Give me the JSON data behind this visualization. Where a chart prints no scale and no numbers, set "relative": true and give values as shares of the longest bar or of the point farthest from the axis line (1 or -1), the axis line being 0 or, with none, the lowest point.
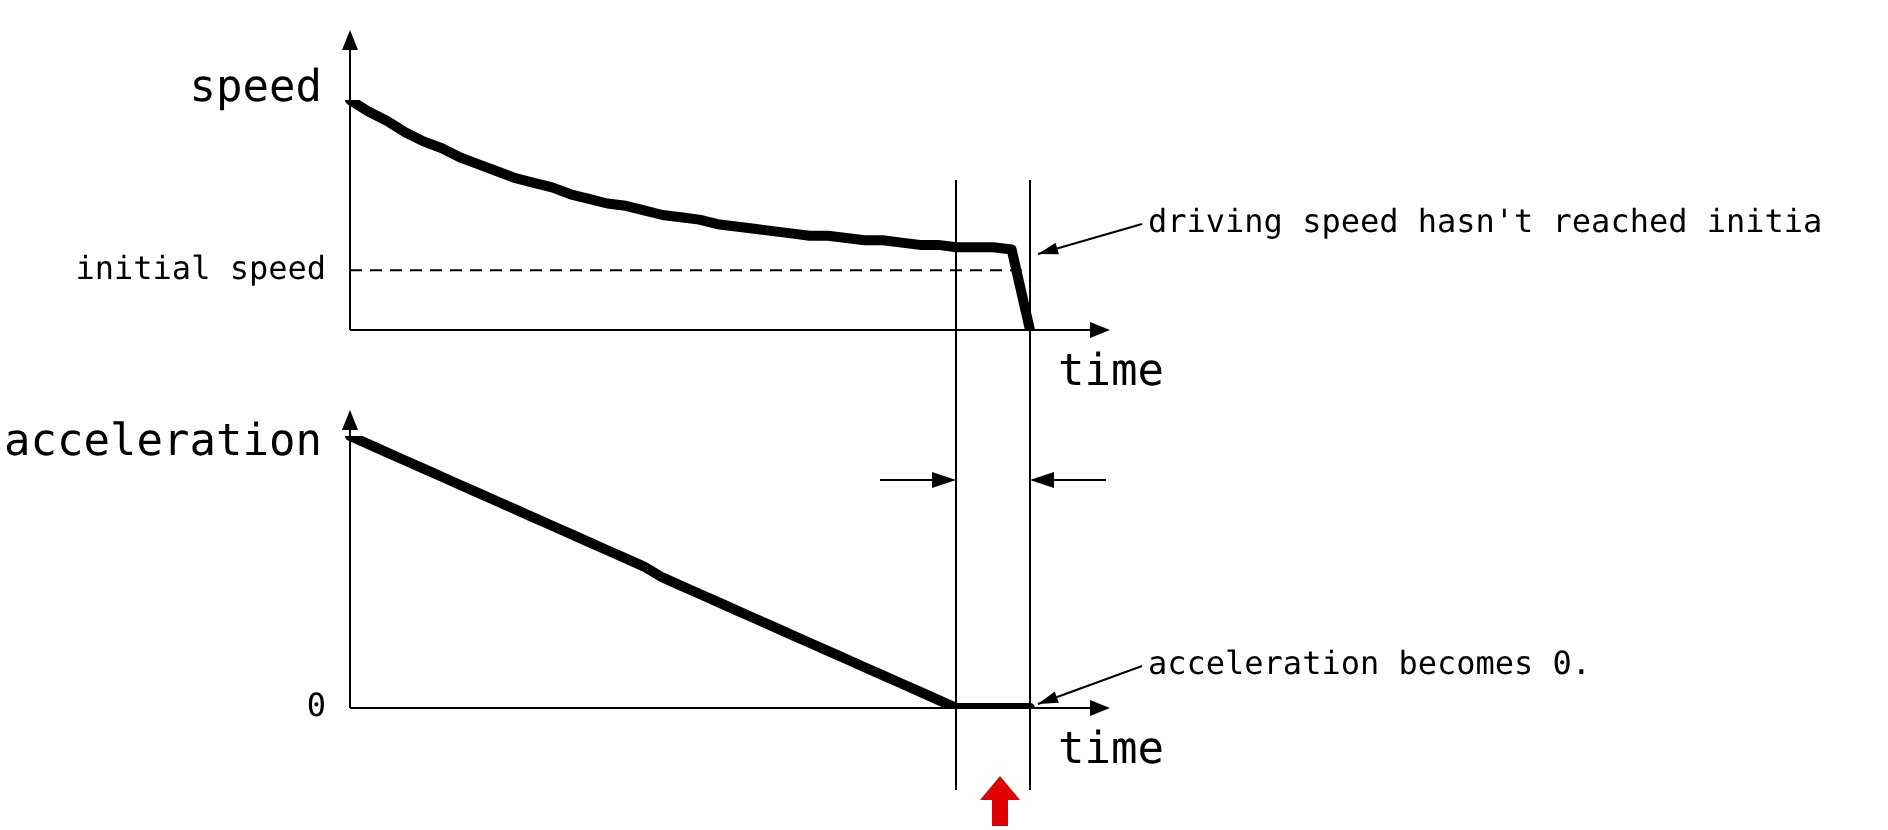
{
  "chart_data": [
    {
      "type": "line",
      "relative": true,
      "ylabel": "speed",
      "xlabel": "time",
      "categories": [
        null,
        null,
        null,
        null,
        null,
        null,
        null,
        null,
        null,
        null,
        null,
        null,
        null,
        null,
        null,
        null,
        null,
        null,
        null,
        null,
        null,
        null,
        null,
        null,
        null,
        null,
        null,
        null,
        null,
        null,
        null,
        null,
        null,
        null,
        null,
        null,
        null,
        null
      ],
      "series": [
        {
          "color": "#000000",
          "values": [
            1.0,
            0.95,
            0.91,
            0.86,
            0.82,
            0.79,
            0.75,
            0.72,
            0.69,
            0.66,
            0.64,
            0.62,
            0.59,
            0.57,
            0.55,
            0.54,
            0.52,
            0.5,
            0.49,
            0.48,
            0.46,
            0.45,
            0.44,
            0.43,
            0.42,
            0.41,
            0.41,
            0.4,
            0.39,
            0.39,
            0.38,
            0.37,
            0.37,
            0.36,
            0.36,
            0.36,
            0.35,
            0
          ]
        }
      ],
      "ref_lines": [
        {
          "axis": "y",
          "value": 0.26,
          "label": "initial speed",
          "line_style": "dashed",
          "color": "#000000"
        }
      ],
      "annotations": [
        "driving speed hasn't reached initia"
      ]
    },
    {
      "type": "line",
      "relative": true,
      "ylabel": "acceleration",
      "xlabel": "time",
      "categories": [
        null,
        null,
        null,
        null,
        null,
        null,
        null,
        null,
        null,
        null,
        null,
        null,
        null,
        null,
        null,
        null,
        null,
        null,
        null,
        null,
        null,
        null,
        null,
        null,
        null,
        null,
        null,
        null,
        null,
        null,
        null,
        null,
        null,
        null,
        null,
        null,
        null,
        null
      ],
      "series": [
        {
          "color": "#000000",
          "values": [
            1,
            0.97,
            0.94,
            0.91,
            0.88,
            0.85,
            0.82,
            0.79,
            0.76,
            0.73,
            0.7,
            0.67,
            0.64,
            0.61,
            0.58,
            0.55,
            0.52,
            0.48,
            0.45,
            0.42,
            0.39,
            0.36,
            0.33,
            0.3,
            0.27,
            0.24,
            0.21,
            0.18,
            0.15,
            0.12,
            0.09,
            0.06,
            0.03,
            0,
            0,
            0,
            0,
            0
          ]
        }
      ],
      "annotations": [
        "acceleration becomes 0.",
        "0"
      ]
    }
  ]
}
